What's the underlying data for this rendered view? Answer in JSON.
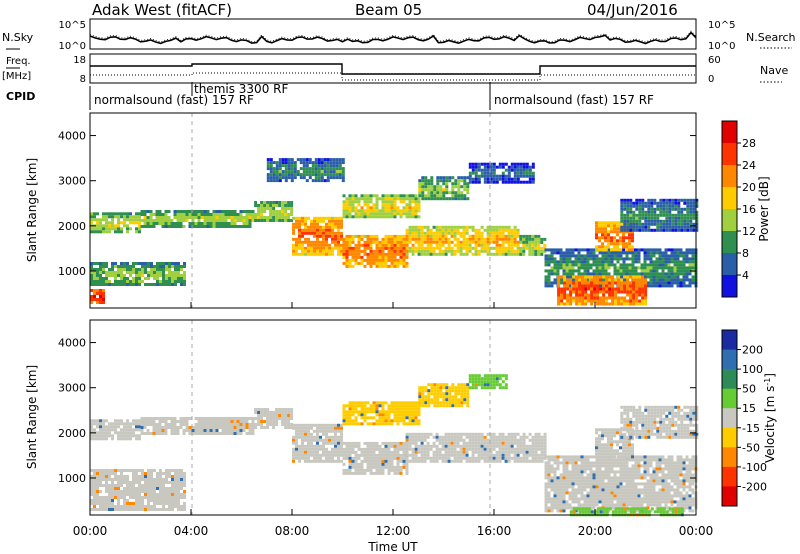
{
  "header": {
    "radar_title": "Adak West (fitACF)",
    "beam_label": "Beam 05",
    "date_label": "04/Jun/2016"
  },
  "noise_panel": {
    "left_label": "N.Sky",
    "left_ticks": [
      "10^5",
      "10^0"
    ],
    "right_label": "N.Search",
    "right_ticks": [
      "10^5",
      "10^0"
    ]
  },
  "freq_panel": {
    "left_label_top": "Freq.",
    "left_label_unit": "[MHz]",
    "left_ticks": [
      "18",
      "8"
    ],
    "right_label": "Nave",
    "right_ticks": [
      "60",
      "0"
    ]
  },
  "cpid_panel": {
    "label": "CPID",
    "segments": [
      {
        "name": "normalsound (fast) 157 RF",
        "start_hour": 0,
        "end_hour": 4
      },
      {
        "name": "themis 3300 RF",
        "start_hour": 4,
        "end_hour": 16
      },
      {
        "name": "normalsound (fast) 157 RF",
        "start_hour": 16,
        "end_hour": 24
      }
    ]
  },
  "power_colorbar": {
    "label": "Power [dB]",
    "ticks": [
      "28",
      "24",
      "20",
      "16",
      "12",
      "8",
      "4"
    ],
    "colors": [
      "#e00000",
      "#ff3300",
      "#ff8800",
      "#ffcc00",
      "#a0d040",
      "#2f8f50",
      "#2a5fa8",
      "#1010e0"
    ]
  },
  "velocity_colorbar": {
    "label": "Velocity [m s^-1]",
    "ticks": [
      "200",
      "100",
      "50",
      "15",
      "-15",
      "-50",
      "-100",
      "-200"
    ],
    "colors": [
      "#1a2aa0",
      "#2f6fb0",
      "#2e8b57",
      "#66cc33",
      "#c8c8c0",
      "#ffcc00",
      "#ff8800",
      "#ff3300",
      "#e00000"
    ]
  },
  "chart_data": [
    {
      "type": "heatmap",
      "name": "backscatter power",
      "xlabel": "",
      "ylabel": "Slant Range [km]",
      "xlim": [
        0,
        24
      ],
      "ylim": [
        180,
        4500
      ],
      "yticks": [
        "4000",
        "3000",
        "2000",
        "1000"
      ],
      "colorbar_label": "Power [dB]",
      "echo_bands": [
        {
          "start_hour": 0.0,
          "end_hour": 0.5,
          "range_low_km": 300,
          "range_high_km": 600,
          "value": 26
        },
        {
          "start_hour": 0.0,
          "end_hour": 3.7,
          "range_low_km": 700,
          "range_high_km": 1200,
          "value": 12
        },
        {
          "start_hour": 0.0,
          "end_hour": 2.0,
          "range_low_km": 1850,
          "range_high_km": 2300,
          "value": 14
        },
        {
          "start_hour": 2.0,
          "end_hour": 6.5,
          "range_low_km": 2000,
          "range_high_km": 2350,
          "value": 13
        },
        {
          "start_hour": 6.5,
          "end_hour": 8.0,
          "range_low_km": 2100,
          "range_high_km": 2550,
          "value": 14
        },
        {
          "start_hour": 8.0,
          "end_hour": 10.0,
          "range_low_km": 1400,
          "range_high_km": 2200,
          "value": 22
        },
        {
          "start_hour": 7.0,
          "end_hour": 10.0,
          "range_low_km": 3000,
          "range_high_km": 3500,
          "value": 8
        },
        {
          "start_hour": 10.0,
          "end_hour": 12.5,
          "range_low_km": 1100,
          "range_high_km": 1800,
          "value": 22
        },
        {
          "start_hour": 12.5,
          "end_hour": 17.0,
          "range_low_km": 1400,
          "range_high_km": 2000,
          "value": 18
        },
        {
          "start_hour": 17.0,
          "end_hour": 18.0,
          "range_low_km": 1350,
          "range_high_km": 1800,
          "value": 14
        },
        {
          "start_hour": 10.0,
          "end_hour": 13.0,
          "range_low_km": 2200,
          "range_high_km": 2700,
          "value": 16
        },
        {
          "start_hour": 13.0,
          "end_hour": 15.0,
          "range_low_km": 2600,
          "range_high_km": 3100,
          "value": 12
        },
        {
          "start_hour": 15.0,
          "end_hour": 17.5,
          "range_low_km": 3000,
          "range_high_km": 3400,
          "value": 6
        },
        {
          "start_hour": 18.0,
          "end_hour": 24.0,
          "range_low_km": 700,
          "range_high_km": 1500,
          "value": 9
        },
        {
          "start_hour": 18.5,
          "end_hour": 22.0,
          "range_low_km": 300,
          "range_high_km": 900,
          "value": 24
        },
        {
          "start_hour": 20.0,
          "end_hour": 21.5,
          "range_low_km": 1500,
          "range_high_km": 2100,
          "value": 22
        },
        {
          "start_hour": 21.0,
          "end_hour": 24.0,
          "range_low_km": 1900,
          "range_high_km": 2600,
          "value": 8
        }
      ]
    },
    {
      "type": "heatmap",
      "name": "line-of-sight velocity",
      "xlabel": "Time UT",
      "ylabel": "Slant Range [km]",
      "xlim": [
        0,
        24
      ],
      "ylim": [
        180,
        4500
      ],
      "xticks": [
        "00:00",
        "04:00",
        "08:00",
        "12:00",
        "16:00",
        "20:00",
        "00:00"
      ],
      "yticks": [
        "4000",
        "3000",
        "2000",
        "1000"
      ],
      "colorbar_label": "Velocity [m s^-1]",
      "echo_bands": [
        {
          "start_hour": 0.0,
          "end_hour": 3.7,
          "range_low_km": 300,
          "range_high_km": 1200,
          "value": 0
        },
        {
          "start_hour": 0.0,
          "end_hour": 2.0,
          "range_low_km": 1850,
          "range_high_km": 2300,
          "value": 0
        },
        {
          "start_hour": 2.0,
          "end_hour": 6.5,
          "range_low_km": 2000,
          "range_high_km": 2350,
          "value": 0
        },
        {
          "start_hour": 6.5,
          "end_hour": 8.0,
          "range_low_km": 2100,
          "range_high_km": 2550,
          "value": 0
        },
        {
          "start_hour": 8.0,
          "end_hour": 10.0,
          "range_low_km": 1400,
          "range_high_km": 2200,
          "value": 0
        },
        {
          "start_hour": 10.0,
          "end_hour": 12.5,
          "range_low_km": 1100,
          "range_high_km": 1800,
          "value": 0
        },
        {
          "start_hour": 12.5,
          "end_hour": 18.0,
          "range_low_km": 1400,
          "range_high_km": 2000,
          "value": 0
        },
        {
          "start_hour": 10.0,
          "end_hour": 13.0,
          "range_low_km": 2200,
          "range_high_km": 2700,
          "value": -40
        },
        {
          "start_hour": 13.0,
          "end_hour": 15.0,
          "range_low_km": 2600,
          "range_high_km": 3100,
          "value": -40
        },
        {
          "start_hour": 15.0,
          "end_hour": 16.5,
          "range_low_km": 3000,
          "range_high_km": 3300,
          "value": 40
        },
        {
          "start_hour": 18.0,
          "end_hour": 24.0,
          "range_low_km": 300,
          "range_high_km": 1500,
          "value": 0
        },
        {
          "start_hour": 19.0,
          "end_hour": 23.5,
          "range_low_km": 200,
          "range_high_km": 350,
          "value": 40
        },
        {
          "start_hour": 20.0,
          "end_hour": 21.5,
          "range_low_km": 1500,
          "range_high_km": 2100,
          "value": 0
        },
        {
          "start_hour": 21.0,
          "end_hour": 24.0,
          "range_low_km": 1900,
          "range_high_km": 2600,
          "value": 0
        }
      ]
    }
  ]
}
